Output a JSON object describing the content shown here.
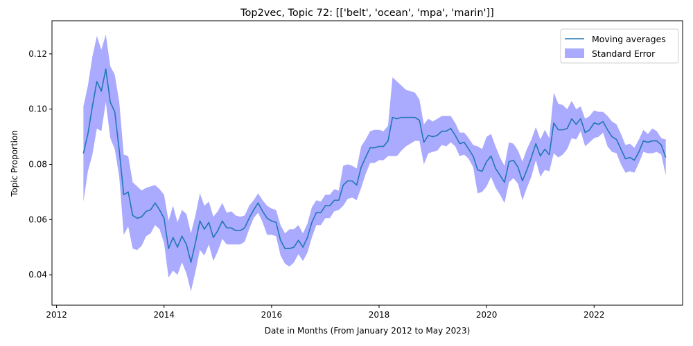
{
  "chart_data": {
    "type": "line",
    "title": "Top2vec, Topic 72: [['belt', 'ocean', 'mpa', 'marin']]",
    "xlabel": "Date in Months (From January 2012 to May 2023)",
    "ylabel": "Topic Proportion",
    "xlim": [
      "2011-12-01",
      "2023-08-25"
    ],
    "ylim": [
      0.029,
      0.132
    ],
    "x_ticks": [
      "2012",
      "2014",
      "2016",
      "2018",
      "2020",
      "2022"
    ],
    "y_ticks": [
      "0.04",
      "0.06",
      "0.08",
      "0.10",
      "0.12"
    ],
    "grid": false,
    "legend": {
      "position": "top-right",
      "entries": [
        {
          "label": "Moving averages",
          "kind": "line",
          "color": "#1f77b4"
        },
        {
          "label": "Standard Error",
          "kind": "band",
          "color": "#aaaaff"
        }
      ]
    },
    "colors": {
      "line": "#1f77b4",
      "band": "#aaaaff"
    },
    "series": [
      {
        "name": "Moving averages",
        "x": [
          "2012-07",
          "2012-08",
          "2012-09",
          "2012-10",
          "2012-11",
          "2012-12",
          "2013-01",
          "2013-02",
          "2013-03",
          "2013-04",
          "2013-05",
          "2013-06",
          "2013-07",
          "2013-08",
          "2013-09",
          "2013-10",
          "2013-11",
          "2013-12",
          "2014-01",
          "2014-02",
          "2014-03",
          "2014-04",
          "2014-05",
          "2014-06",
          "2014-07",
          "2014-08",
          "2014-09",
          "2014-10",
          "2014-11",
          "2014-12",
          "2015-01",
          "2015-02",
          "2015-03",
          "2015-04",
          "2015-05",
          "2015-06",
          "2015-07",
          "2015-08",
          "2015-09",
          "2015-10",
          "2015-11",
          "2015-12",
          "2016-01",
          "2016-02",
          "2016-03",
          "2016-04",
          "2016-05",
          "2016-06",
          "2016-07",
          "2016-08",
          "2016-09",
          "2016-10",
          "2016-11",
          "2016-12",
          "2017-01",
          "2017-02",
          "2017-03",
          "2017-04",
          "2017-05",
          "2017-06",
          "2017-07",
          "2017-08",
          "2017-09",
          "2017-10",
          "2017-11",
          "2017-12",
          "2018-01",
          "2018-02",
          "2018-03",
          "2018-04",
          "2018-05",
          "2018-06",
          "2018-07",
          "2018-08",
          "2018-09",
          "2018-10",
          "2018-11",
          "2018-12",
          "2019-01",
          "2019-02",
          "2019-03",
          "2019-04",
          "2019-05",
          "2019-06",
          "2019-07",
          "2019-08",
          "2019-09",
          "2019-10",
          "2019-11",
          "2019-12",
          "2020-01",
          "2020-02",
          "2020-03",
          "2020-04",
          "2020-05",
          "2020-06",
          "2020-07",
          "2020-08",
          "2020-09",
          "2020-10",
          "2020-11",
          "2020-12",
          "2021-01",
          "2021-02",
          "2021-03",
          "2021-04",
          "2021-05",
          "2021-06",
          "2021-07",
          "2021-08",
          "2021-09",
          "2021-10",
          "2021-11",
          "2021-12",
          "2022-01",
          "2022-02",
          "2022-03",
          "2022-04",
          "2022-05",
          "2022-06",
          "2022-07",
          "2022-08",
          "2022-09",
          "2022-10",
          "2022-11",
          "2022-12",
          "2023-01",
          "2023-02",
          "2023-03",
          "2023-04",
          "2023-05"
        ],
        "y": [
          0.084,
          0.091,
          0.101,
          0.11,
          0.1065,
          0.1145,
          0.1025,
          0.099,
          0.085,
          0.069,
          0.07,
          0.0615,
          0.0605,
          0.061,
          0.063,
          0.0635,
          0.066,
          0.0635,
          0.0605,
          0.0495,
          0.0535,
          0.05,
          0.054,
          0.051,
          0.0445,
          0.0515,
          0.0595,
          0.0565,
          0.059,
          0.0535,
          0.056,
          0.0595,
          0.057,
          0.057,
          0.056,
          0.056,
          0.057,
          0.0605,
          0.0635,
          0.066,
          0.063,
          0.0605,
          0.0595,
          0.059,
          0.0525,
          0.0495,
          0.0495,
          0.05,
          0.0525,
          0.05,
          0.0535,
          0.059,
          0.0625,
          0.0625,
          0.065,
          0.065,
          0.067,
          0.067,
          0.0725,
          0.074,
          0.074,
          0.0725,
          0.079,
          0.0825,
          0.086,
          0.086,
          0.0865,
          0.0865,
          0.0885,
          0.097,
          0.0965,
          0.097,
          0.097,
          0.097,
          0.097,
          0.096,
          0.088,
          0.0905,
          0.09,
          0.0905,
          0.092,
          0.092,
          0.093,
          0.0905,
          0.0875,
          0.088,
          0.0855,
          0.083,
          0.078,
          0.0775,
          0.081,
          0.083,
          0.0785,
          0.076,
          0.0735,
          0.081,
          0.0815,
          0.079,
          0.074,
          0.078,
          0.0825,
          0.0875,
          0.083,
          0.0855,
          0.0835,
          0.095,
          0.0925,
          0.0925,
          0.093,
          0.0965,
          0.0945,
          0.0965,
          0.0915,
          0.0925,
          0.095,
          0.0945,
          0.0955,
          0.0925,
          0.09,
          0.089,
          0.0855,
          0.082,
          0.0825,
          0.0815,
          0.0845,
          0.0885,
          0.088,
          0.0885,
          0.0885,
          0.087,
          0.0825
        ]
      },
      {
        "name": "Standard Error",
        "upper": [
          0.101,
          0.1085,
          0.119,
          0.1265,
          0.1215,
          0.127,
          0.1155,
          0.1125,
          0.1025,
          0.0835,
          0.083,
          0.0735,
          0.072,
          0.0705,
          0.0715,
          0.072,
          0.0725,
          0.071,
          0.069,
          0.0595,
          0.065,
          0.059,
          0.0635,
          0.062,
          0.055,
          0.0615,
          0.0695,
          0.065,
          0.0665,
          0.061,
          0.063,
          0.066,
          0.0625,
          0.063,
          0.0615,
          0.061,
          0.0615,
          0.065,
          0.067,
          0.0695,
          0.067,
          0.065,
          0.064,
          0.0635,
          0.058,
          0.055,
          0.0565,
          0.0565,
          0.058,
          0.055,
          0.0585,
          0.0645,
          0.067,
          0.0665,
          0.069,
          0.069,
          0.071,
          0.0705,
          0.0795,
          0.08,
          0.0795,
          0.0785,
          0.0865,
          0.089,
          0.092,
          0.0925,
          0.0925,
          0.092,
          0.094,
          0.1115,
          0.11,
          0.1085,
          0.107,
          0.1065,
          0.106,
          0.1035,
          0.0945,
          0.0965,
          0.0955,
          0.0965,
          0.0975,
          0.0975,
          0.0975,
          0.095,
          0.0915,
          0.0915,
          0.0895,
          0.087,
          0.0865,
          0.0855,
          0.09,
          0.091,
          0.0865,
          0.0825,
          0.0795,
          0.088,
          0.0875,
          0.085,
          0.081,
          0.0855,
          0.089,
          0.0935,
          0.089,
          0.0925,
          0.0895,
          0.106,
          0.102,
          0.1015,
          0.1,
          0.103,
          0.1,
          0.101,
          0.0965,
          0.0975,
          0.0995,
          0.099,
          0.099,
          0.0975,
          0.0955,
          0.0945,
          0.091,
          0.087,
          0.0875,
          0.086,
          0.089,
          0.0925,
          0.091,
          0.093,
          0.092,
          0.0895,
          0.089
        ],
        "lower": [
          0.0665,
          0.0775,
          0.0835,
          0.093,
          0.092,
          0.1025,
          0.0895,
          0.0855,
          0.0755,
          0.0545,
          0.0575,
          0.0495,
          0.049,
          0.0505,
          0.054,
          0.055,
          0.058,
          0.0565,
          0.0515,
          0.039,
          0.0415,
          0.04,
          0.0445,
          0.0405,
          0.034,
          0.041,
          0.049,
          0.047,
          0.051,
          0.045,
          0.0485,
          0.053,
          0.051,
          0.051,
          0.051,
          0.051,
          0.052,
          0.0565,
          0.0605,
          0.0625,
          0.059,
          0.0545,
          0.0545,
          0.054,
          0.047,
          0.044,
          0.043,
          0.0445,
          0.0475,
          0.045,
          0.048,
          0.0535,
          0.058,
          0.058,
          0.0605,
          0.0605,
          0.063,
          0.0635,
          0.065,
          0.0675,
          0.068,
          0.067,
          0.0715,
          0.0765,
          0.0805,
          0.0805,
          0.0815,
          0.0815,
          0.083,
          0.083,
          0.083,
          0.085,
          0.0865,
          0.0875,
          0.0885,
          0.0885,
          0.08,
          0.084,
          0.0845,
          0.085,
          0.087,
          0.0865,
          0.088,
          0.0865,
          0.083,
          0.0835,
          0.082,
          0.079,
          0.0695,
          0.07,
          0.072,
          0.0755,
          0.0715,
          0.069,
          0.066,
          0.0735,
          0.075,
          0.073,
          0.067,
          0.0715,
          0.0755,
          0.0815,
          0.0755,
          0.078,
          0.0775,
          0.084,
          0.0825,
          0.0835,
          0.0855,
          0.0895,
          0.089,
          0.092,
          0.0865,
          0.088,
          0.0895,
          0.09,
          0.0915,
          0.0865,
          0.0845,
          0.084,
          0.08,
          0.077,
          0.0775,
          0.077,
          0.0805,
          0.0845,
          0.084,
          0.084,
          0.0845,
          0.0835,
          0.076
        ]
      }
    ]
  }
}
